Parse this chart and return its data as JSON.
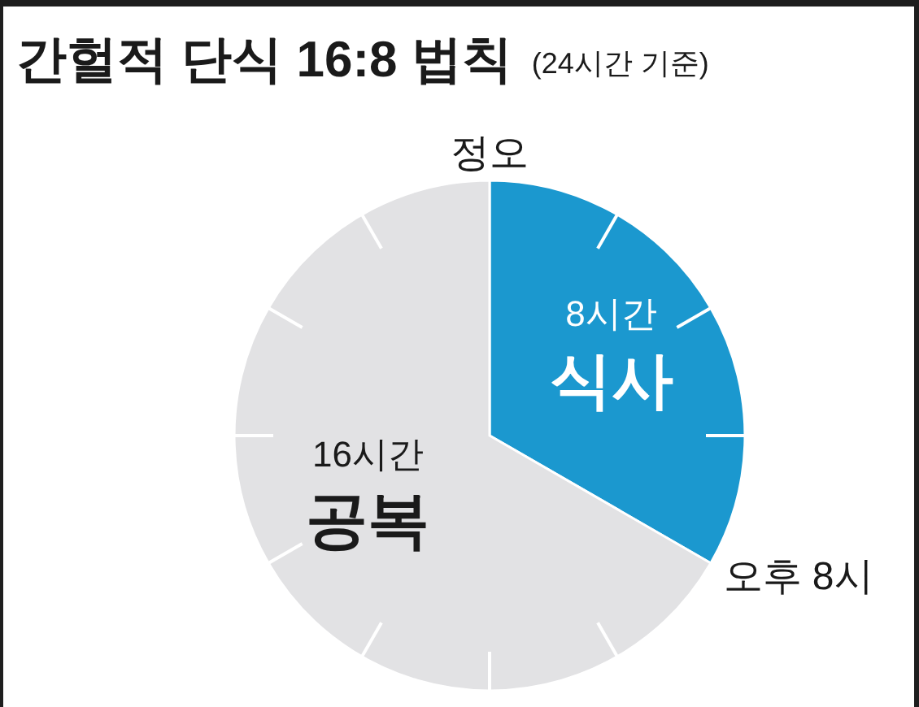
{
  "chart_data": {
    "type": "pie",
    "title": "간헐적 단식 16:8 법칙",
    "subtitle": "(24시간 기준)",
    "categories": [
      "식사",
      "공복"
    ],
    "values": [
      8,
      16
    ],
    "colors": [
      "#1b98cf",
      "#e2e2e4"
    ],
    "value_labels": [
      "8시간",
      "16시간"
    ],
    "annotations": [
      "정오",
      "오후 8시"
    ]
  }
}
